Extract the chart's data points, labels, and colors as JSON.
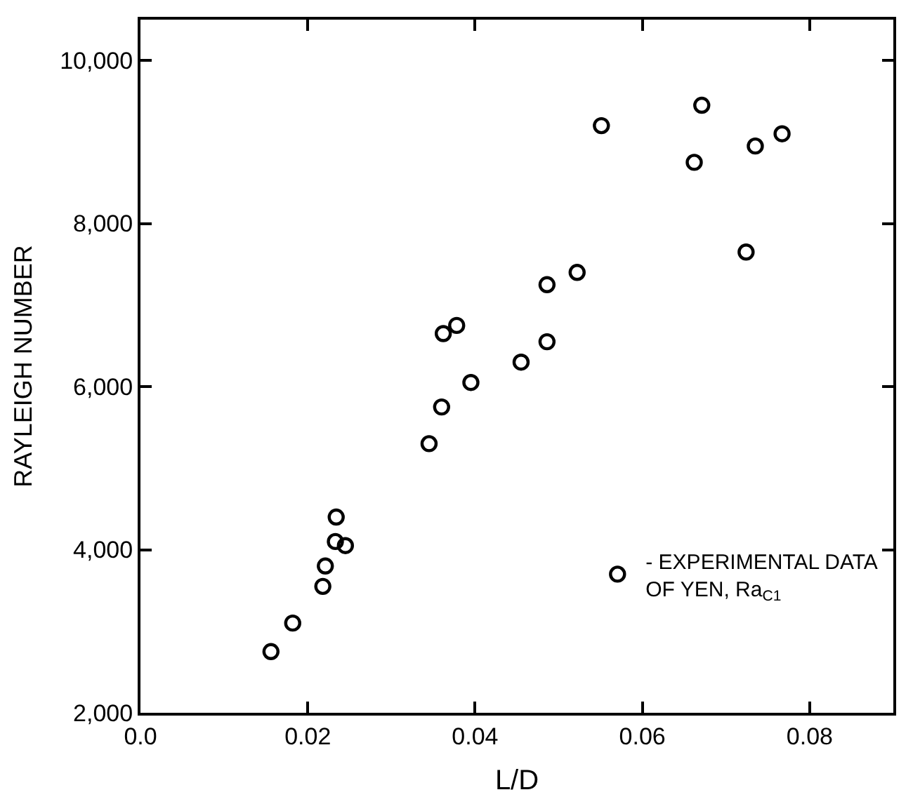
{
  "chart_data": {
    "type": "scatter",
    "xlabel": "L/D",
    "ylabel": "RAYLEIGH NUMBER",
    "xlim": [
      0,
      0.09
    ],
    "ylim": [
      2000,
      10500
    ],
    "xticks": [
      {
        "value": 0,
        "label": "0.0"
      },
      0.02,
      0.04,
      0.06,
      0.08
    ],
    "yticks": [
      {
        "value": 2000,
        "label": "2,000"
      },
      {
        "value": 4000,
        "label": "4,000"
      },
      {
        "value": 6000,
        "label": "6,000"
      },
      {
        "value": 8000,
        "label": "8,000"
      },
      {
        "value": 10000,
        "label": "10,000"
      }
    ],
    "legend": "bottom right",
    "marker": "circle",
    "series": [
      {
        "name": "- EXPERIMENTAL DATA\nOF YEN, Ra$_{C1}$",
        "color": "#000000",
        "x": [
          0.0156,
          0.0182,
          0.0218,
          0.0221,
          0.0233,
          0.0245,
          0.0234,
          0.0345,
          0.036,
          0.0362,
          0.0378,
          0.0395,
          0.0455,
          0.0486,
          0.0486,
          0.0522,
          0.0551,
          0.0671,
          0.0662,
          0.0735,
          0.0767,
          0.0724
        ],
        "values": [
          2750,
          3100,
          3550,
          3800,
          4100,
          4050,
          4400,
          5300,
          5750,
          6650,
          6750,
          6050,
          6300,
          7250,
          6550,
          7400,
          9200,
          9450,
          8750,
          8950,
          9100,
          7650
        ]
      }
    ]
  }
}
